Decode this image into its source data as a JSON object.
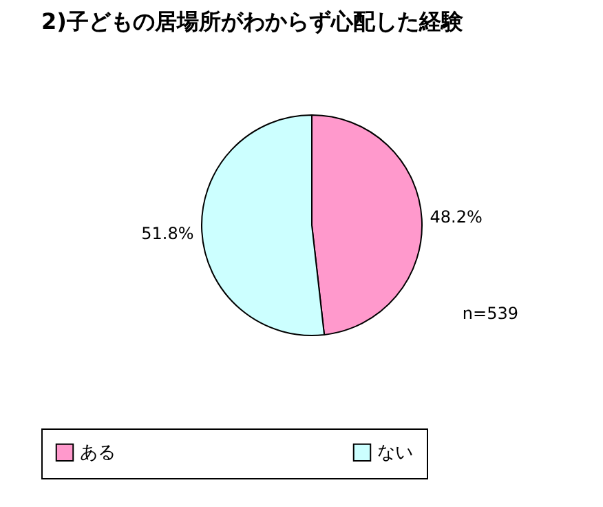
{
  "chart_data": {
    "type": "pie",
    "title": "2)子どもの居場所がわからず心配した経験",
    "categories": [
      "ある",
      "ない"
    ],
    "values": [
      48.2,
      51.8
    ],
    "value_labels": [
      "48.2%",
      "51.8%"
    ],
    "colors": [
      "#ff99cc",
      "#ccffff"
    ],
    "legend": "bottom",
    "annotations": [
      "n=539"
    ]
  }
}
